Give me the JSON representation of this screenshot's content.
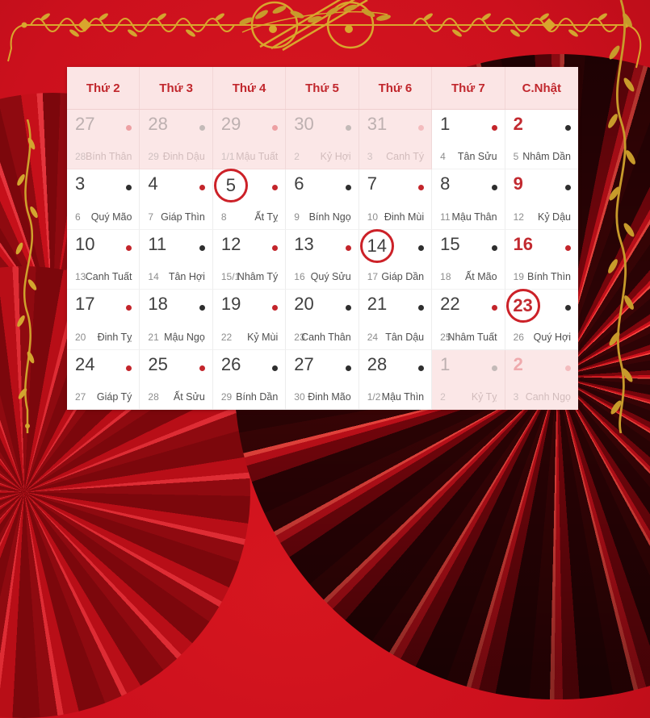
{
  "colors": {
    "background_red": "#cc101d",
    "gold": "#d9a62d",
    "accent_red": "#c1272d",
    "header_bg": "#fbe5e5",
    "faded_bg": "#fbe7e7",
    "sunday_red": "#c22a30",
    "dot_red": "#c3252b",
    "dot_black": "#2e2e2e",
    "bottom_band": "#8c0d18"
  },
  "calendar": {
    "weekday_headers": [
      "Thứ 2",
      "Thứ 3",
      "Thứ 4",
      "Thứ 5",
      "Thứ 6",
      "Thứ 7",
      "C.Nhật"
    ],
    "weeks": [
      [
        {
          "solar": "27",
          "lunar": "28",
          "canchi": "Bính Thân",
          "dot": "fadedred",
          "faded": true,
          "sunday": false,
          "circled": false
        },
        {
          "solar": "28",
          "lunar": "29",
          "canchi": "Đinh Dậu",
          "dot": "fadedgray",
          "faded": true,
          "sunday": false,
          "circled": false
        },
        {
          "solar": "29",
          "lunar": "1/1",
          "canchi": "Mậu Tuất",
          "dot": "fadedred",
          "faded": true,
          "sunday": false,
          "circled": false
        },
        {
          "solar": "30",
          "lunar": "2",
          "canchi": "Kỷ Hợi",
          "dot": "fadedgray",
          "faded": true,
          "sunday": false,
          "circled": false
        },
        {
          "solar": "31",
          "lunar": "3",
          "canchi": "Canh Tý",
          "dot": "fadedpink",
          "faded": true,
          "sunday": false,
          "circled": false
        },
        {
          "solar": "1",
          "lunar": "4",
          "canchi": "Tân Sửu",
          "dot": "red",
          "faded": false,
          "sunday": false,
          "circled": false
        },
        {
          "solar": "2",
          "lunar": "5",
          "canchi": "Nhâm Dần",
          "dot": "black",
          "faded": false,
          "sunday": true,
          "circled": false
        }
      ],
      [
        {
          "solar": "3",
          "lunar": "6",
          "canchi": "Quý Mão",
          "dot": "black",
          "faded": false,
          "sunday": false,
          "circled": false
        },
        {
          "solar": "4",
          "lunar": "7",
          "canchi": "Giáp Thìn",
          "dot": "red",
          "faded": false,
          "sunday": false,
          "circled": false
        },
        {
          "solar": "5",
          "lunar": "8",
          "canchi": "Ất Tỵ",
          "dot": "red",
          "faded": false,
          "sunday": false,
          "circled": true
        },
        {
          "solar": "6",
          "lunar": "9",
          "canchi": "Bính Ngọ",
          "dot": "black",
          "faded": false,
          "sunday": false,
          "circled": false
        },
        {
          "solar": "7",
          "lunar": "10",
          "canchi": "Đinh Mùi",
          "dot": "red",
          "faded": false,
          "sunday": false,
          "circled": false
        },
        {
          "solar": "8",
          "lunar": "11",
          "canchi": "Mậu Thân",
          "dot": "black",
          "faded": false,
          "sunday": false,
          "circled": false
        },
        {
          "solar": "9",
          "lunar": "12",
          "canchi": "Kỷ Dậu",
          "dot": "black",
          "faded": false,
          "sunday": true,
          "circled": false
        }
      ],
      [
        {
          "solar": "10",
          "lunar": "13",
          "canchi": "Canh Tuất",
          "dot": "red",
          "faded": false,
          "sunday": false,
          "circled": false
        },
        {
          "solar": "11",
          "lunar": "14",
          "canchi": "Tân Hợi",
          "dot": "black",
          "faded": false,
          "sunday": false,
          "circled": false
        },
        {
          "solar": "12",
          "lunar": "15/1",
          "canchi": "Nhâm Tý",
          "dot": "red",
          "faded": false,
          "sunday": false,
          "circled": false
        },
        {
          "solar": "13",
          "lunar": "16",
          "canchi": "Quý Sửu",
          "dot": "red",
          "faded": false,
          "sunday": false,
          "circled": false
        },
        {
          "solar": "14",
          "lunar": "17",
          "canchi": "Giáp Dần",
          "dot": "black",
          "faded": false,
          "sunday": false,
          "circled": true
        },
        {
          "solar": "15",
          "lunar": "18",
          "canchi": "Ất Mão",
          "dot": "black",
          "faded": false,
          "sunday": false,
          "circled": false
        },
        {
          "solar": "16",
          "lunar": "19",
          "canchi": "Bính Thìn",
          "dot": "red",
          "faded": false,
          "sunday": true,
          "circled": false
        }
      ],
      [
        {
          "solar": "17",
          "lunar": "20",
          "canchi": "Đinh Tỵ",
          "dot": "red",
          "faded": false,
          "sunday": false,
          "circled": false
        },
        {
          "solar": "18",
          "lunar": "21",
          "canchi": "Mậu Ngọ",
          "dot": "black",
          "faded": false,
          "sunday": false,
          "circled": false
        },
        {
          "solar": "19",
          "lunar": "22",
          "canchi": "Kỷ Mùi",
          "dot": "red",
          "faded": false,
          "sunday": false,
          "circled": false
        },
        {
          "solar": "20",
          "lunar": "23",
          "canchi": "Canh Thân",
          "dot": "black",
          "faded": false,
          "sunday": false,
          "circled": false
        },
        {
          "solar": "21",
          "lunar": "24",
          "canchi": "Tân Dậu",
          "dot": "black",
          "faded": false,
          "sunday": false,
          "circled": false
        },
        {
          "solar": "22",
          "lunar": "25",
          "canchi": "Nhâm Tuất",
          "dot": "red",
          "faded": false,
          "sunday": false,
          "circled": false
        },
        {
          "solar": "23",
          "lunar": "26",
          "canchi": "Quý Hợi",
          "dot": "black",
          "faded": false,
          "sunday": true,
          "circled": true
        }
      ],
      [
        {
          "solar": "24",
          "lunar": "27",
          "canchi": "Giáp Tý",
          "dot": "red",
          "faded": false,
          "sunday": false,
          "circled": false
        },
        {
          "solar": "25",
          "lunar": "28",
          "canchi": "Ất Sửu",
          "dot": "red",
          "faded": false,
          "sunday": false,
          "circled": false
        },
        {
          "solar": "26",
          "lunar": "29",
          "canchi": "Bính Dần",
          "dot": "black",
          "faded": false,
          "sunday": false,
          "circled": false
        },
        {
          "solar": "27",
          "lunar": "30",
          "canchi": "Đinh Mão",
          "dot": "black",
          "faded": false,
          "sunday": false,
          "circled": false
        },
        {
          "solar": "28",
          "lunar": "1/2",
          "canchi": "Mậu Thìn",
          "dot": "black",
          "faded": false,
          "sunday": false,
          "circled": false
        },
        {
          "solar": "1",
          "lunar": "2",
          "canchi": "Kỷ Tỵ",
          "dot": "fadedgray",
          "faded": true,
          "sunday": false,
          "circled": false
        },
        {
          "solar": "2",
          "lunar": "3",
          "canchi": "Canh Ngọ",
          "dot": "fadedpink",
          "faded": true,
          "sunday": true,
          "circled": false
        }
      ]
    ]
  }
}
